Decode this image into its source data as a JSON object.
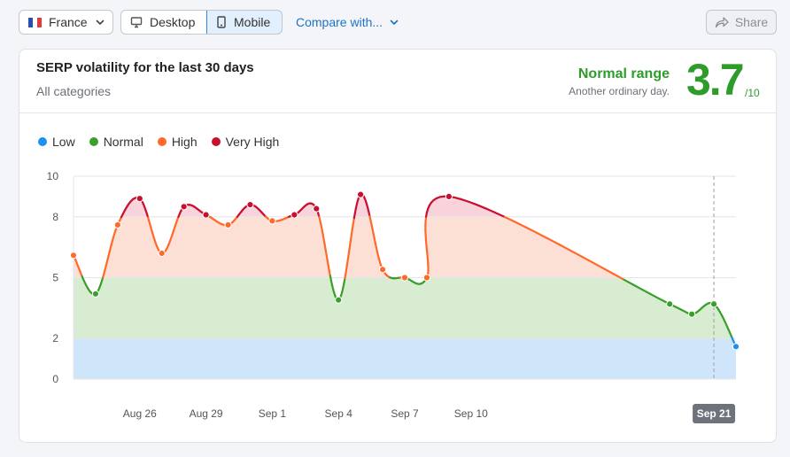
{
  "toolbar": {
    "country": "France",
    "device_desktop": "Desktop",
    "device_mobile": "Mobile",
    "compare": "Compare with...",
    "share": "Share"
  },
  "card": {
    "title": "SERP volatility for the last 30 days",
    "subtitle": "All categories",
    "range_label": "Normal range",
    "range_sub": "Another ordinary day.",
    "score": "3.7",
    "score_max": "/10"
  },
  "colors": {
    "low": "#1e90f0",
    "normal": "#3aa02b",
    "high": "#ff6a2a",
    "very_high": "#c8102e",
    "band_low": "#cfe6fa",
    "band_normal": "#d8ecd2",
    "band_high": "#fde0d5",
    "band_very_high": "#f8d3dc"
  },
  "chart_data": {
    "type": "line",
    "legend": [
      "Low",
      "Normal",
      "High",
      "Very High"
    ],
    "legend_position": "top-left",
    "y_ticks": [
      0,
      2,
      5,
      8,
      10
    ],
    "ylim": [
      0,
      10
    ],
    "x_tick_labels": [
      {
        "label": "Aug 26",
        "day": 26
      },
      {
        "label": "Aug 29",
        "day": 29
      },
      {
        "label": "Sep 1",
        "day": 32
      },
      {
        "label": "Sep 4",
        "day": 35
      },
      {
        "label": "Sep 7",
        "day": 38
      },
      {
        "label": "Sep 10",
        "day": 41
      },
      {
        "label": "Sep 21",
        "day": 52,
        "highlight": true
      }
    ],
    "points": [
      {
        "day": 23,
        "value": 6.1
      },
      {
        "day": 24,
        "value": 4.2
      },
      {
        "day": 25,
        "value": 7.6
      },
      {
        "day": 26,
        "value": 8.9
      },
      {
        "day": 27,
        "value": 6.2
      },
      {
        "day": 28,
        "value": 8.5
      },
      {
        "day": 29,
        "value": 8.1
      },
      {
        "day": 30,
        "value": 7.6
      },
      {
        "day": 31,
        "value": 8.6
      },
      {
        "day": 32,
        "value": 7.8
      },
      {
        "day": 33,
        "value": 8.1
      },
      {
        "day": 34,
        "value": 8.4
      },
      {
        "day": 35,
        "value": 3.9
      },
      {
        "day": 36,
        "value": 9.1
      },
      {
        "day": 37,
        "value": 5.4
      },
      {
        "day": 38,
        "value": 5.0
      },
      {
        "day": 39,
        "value": 5.0
      },
      {
        "day": 40,
        "value": 9.0
      },
      {
        "day": 50,
        "value": 3.7
      },
      {
        "day": 51,
        "value": 3.2
      },
      {
        "day": 52,
        "value": 3.7
      },
      {
        "day": 53,
        "value": 1.6
      }
    ]
  }
}
